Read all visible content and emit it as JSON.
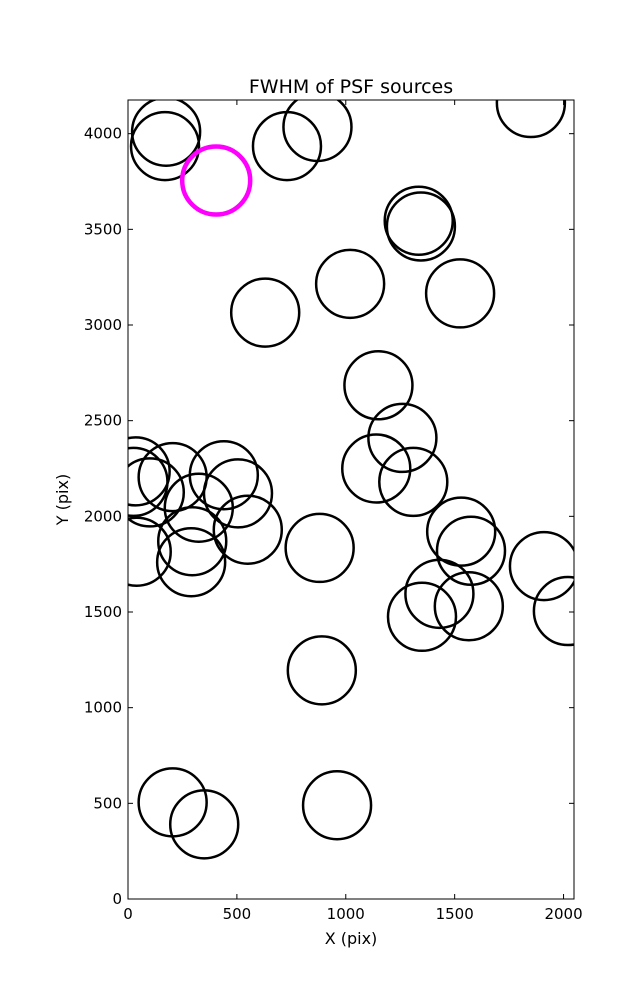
{
  "chart_data": {
    "type": "scatter",
    "title": "FWHM of PSF sources",
    "xlabel": "X (pix)",
    "ylabel": "Y (pix)",
    "xlim": [
      0,
      2048
    ],
    "ylim": [
      0,
      4176
    ],
    "xticks": [
      0,
      500,
      1000,
      1500,
      2000
    ],
    "yticks": [
      0,
      500,
      1000,
      1500,
      2000,
      2500,
      3000,
      3500,
      4000
    ],
    "marker": "open-circle",
    "grid": false,
    "legend": "none",
    "colors": {
      "default": "#000000",
      "highlight": "#ff00ff"
    },
    "series": [
      {
        "color": "#000000",
        "points": [
          {
            "x": 175,
            "y": 4010
          },
          {
            "x": 170,
            "y": 3935
          },
          {
            "x": 730,
            "y": 3935
          },
          {
            "x": 870,
            "y": 4035
          },
          {
            "x": 1850,
            "y": 4160
          },
          {
            "x": 1335,
            "y": 3545
          },
          {
            "x": 1345,
            "y": 3515
          },
          {
            "x": 1020,
            "y": 3215
          },
          {
            "x": 1525,
            "y": 3165
          },
          {
            "x": 630,
            "y": 3065
          },
          {
            "x": 1150,
            "y": 2685
          },
          {
            "x": 1260,
            "y": 2410
          },
          {
            "x": 1140,
            "y": 2250
          },
          {
            "x": 1310,
            "y": 2180
          },
          {
            "x": 35,
            "y": 2235
          },
          {
            "x": 25,
            "y": 2180
          },
          {
            "x": 205,
            "y": 2205
          },
          {
            "x": 100,
            "y": 2125
          },
          {
            "x": 440,
            "y": 2215
          },
          {
            "x": 505,
            "y": 2120
          },
          {
            "x": 325,
            "y": 2045
          },
          {
            "x": 550,
            "y": 1930
          },
          {
            "x": 295,
            "y": 1870
          },
          {
            "x": 290,
            "y": 1760
          },
          {
            "x": 40,
            "y": 1815
          },
          {
            "x": 880,
            "y": 1835
          },
          {
            "x": 1530,
            "y": 1920
          },
          {
            "x": 1575,
            "y": 1820
          },
          {
            "x": 1910,
            "y": 1740
          },
          {
            "x": 2020,
            "y": 1505
          },
          {
            "x": 1430,
            "y": 1595
          },
          {
            "x": 1350,
            "y": 1475
          },
          {
            "x": 1565,
            "y": 1530
          },
          {
            "x": 890,
            "y": 1195
          },
          {
            "x": 205,
            "y": 505
          },
          {
            "x": 350,
            "y": 390
          },
          {
            "x": 960,
            "y": 490
          }
        ]
      },
      {
        "color": "#ff00ff",
        "points": [
          {
            "x": 405,
            "y": 3755
          }
        ]
      }
    ]
  }
}
